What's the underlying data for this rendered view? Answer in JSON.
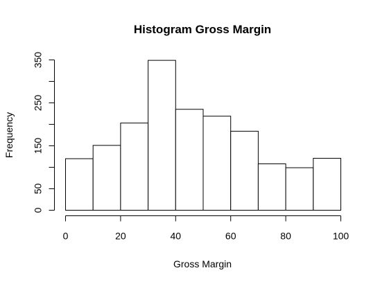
{
  "chart_data": {
    "type": "bar",
    "title": "Histogram Gross Margin",
    "xlabel": "Gross Margin",
    "ylabel": "Frequency",
    "bins": [
      {
        "from": 0,
        "to": 10,
        "count": 120
      },
      {
        "from": 10,
        "to": 20,
        "count": 151
      },
      {
        "from": 20,
        "to": 30,
        "count": 203
      },
      {
        "from": 30,
        "to": 40,
        "count": 349
      },
      {
        "from": 40,
        "to": 50,
        "count": 235
      },
      {
        "from": 50,
        "to": 60,
        "count": 219
      },
      {
        "from": 60,
        "to": 70,
        "count": 184
      },
      {
        "from": 70,
        "to": 80,
        "count": 108
      },
      {
        "from": 80,
        "to": 90,
        "count": 99
      },
      {
        "from": 90,
        "to": 100,
        "count": 121
      }
    ],
    "xlim": [
      0,
      100
    ],
    "ylim": [
      0,
      350
    ],
    "x_ticks": [
      0,
      20,
      40,
      60,
      80,
      100
    ],
    "x_tick_labels": [
      "0",
      "20",
      "40",
      "60",
      "80",
      "100"
    ],
    "y_ticks": [
      0,
      50,
      100,
      150,
      200,
      250,
      300,
      350
    ],
    "y_tick_labels": [
      "0",
      "50",
      "150",
      "250",
      "350"
    ],
    "y_labeled_ticks": [
      0,
      50,
      150,
      250,
      350
    ],
    "bar_fill": "#ffffff",
    "bar_stroke": "#000000",
    "grid": false,
    "legend": "none"
  }
}
